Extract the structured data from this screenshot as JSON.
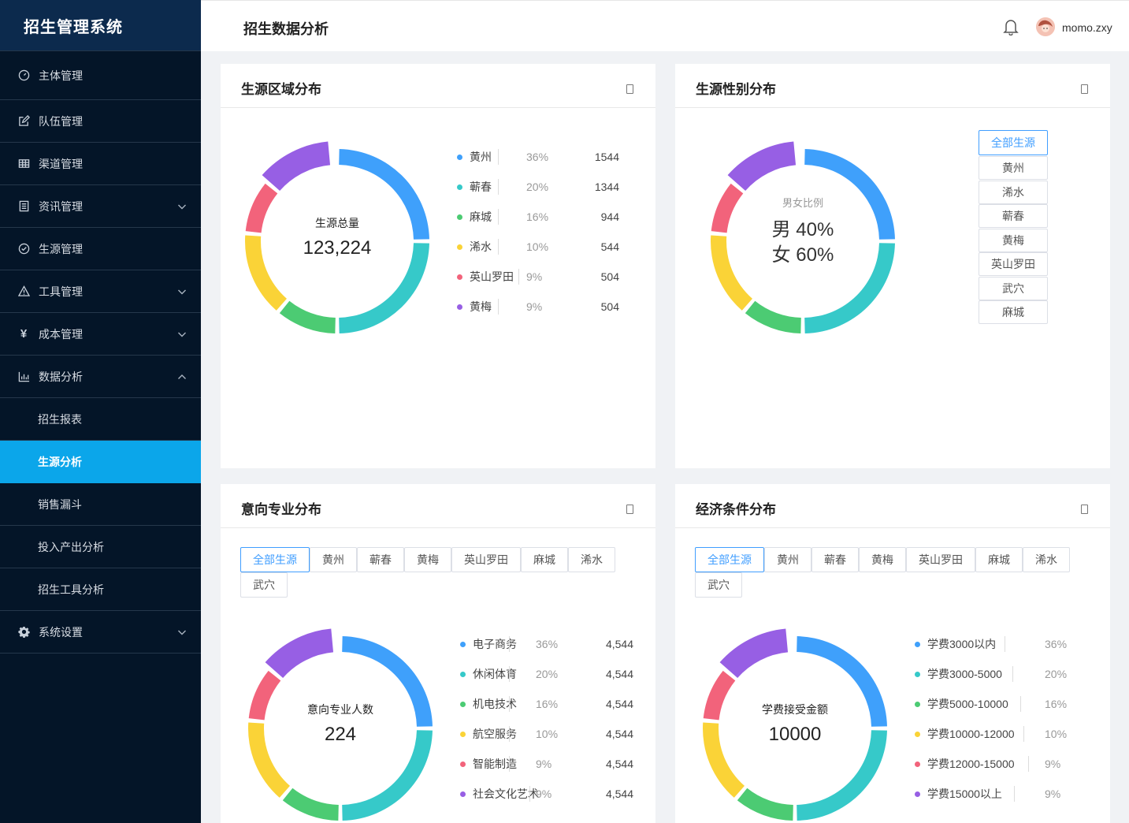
{
  "app": {
    "title": "招生管理系统"
  },
  "header": {
    "title": "招生数据分析",
    "username": "momo.zxy"
  },
  "sidebar": {
    "items": [
      {
        "label": "主体管理",
        "icon": "gauge-icon"
      },
      {
        "label": "队伍管理",
        "icon": "edit-icon"
      },
      {
        "label": "渠道管理",
        "icon": "table-icon"
      },
      {
        "label": "资讯管理",
        "icon": "document-icon"
      },
      {
        "label": "生源管理",
        "icon": "check-circle-icon"
      },
      {
        "label": "工具管理",
        "icon": "warning-icon"
      },
      {
        "label": "成本管理",
        "icon": "yen-icon"
      },
      {
        "label": "数据分析",
        "icon": "bar-chart-icon"
      },
      {
        "label": "系统设置",
        "icon": "gear-icon"
      }
    ],
    "sub_items": [
      {
        "label": "招生报表"
      },
      {
        "label": "生源分析"
      },
      {
        "label": "销售漏斗"
      },
      {
        "label": "投入产出分析"
      },
      {
        "label": "招生工具分析"
      }
    ]
  },
  "colors": {
    "blue": "#3fa0fb",
    "teal": "#36c9c9",
    "green": "#4ccb73",
    "yellow": "#fad337",
    "red": "#f2637b",
    "purple": "#975fe4"
  },
  "region": {
    "title": "生源区域分布",
    "center_label": "生源总量",
    "center_value": "123,224",
    "legend": [
      {
        "name": "黄州",
        "pct": "36%",
        "value": "1544",
        "color": "#3fa0fb"
      },
      {
        "name": "蕲春",
        "pct": "20%",
        "value": "1344",
        "color": "#36c9c9"
      },
      {
        "name": "麻城",
        "pct": "16%",
        "value": "944",
        "color": "#4ccb73"
      },
      {
        "name": "浠水",
        "pct": "10%",
        "value": "544",
        "color": "#fad337"
      },
      {
        "name": "英山罗田",
        "pct": "9%",
        "value": "504",
        "color": "#f2637b"
      },
      {
        "name": "黄梅",
        "pct": "9%",
        "value": "504",
        "color": "#975fe4"
      }
    ]
  },
  "gender": {
    "title": "生源性别分布",
    "label": "男女比例",
    "male": "男 40%",
    "female": "女 60%",
    "filters": [
      "全部生源",
      "黄州",
      "浠水",
      "蕲春",
      "黄梅",
      "英山罗田",
      "武穴",
      "麻城"
    ]
  },
  "major": {
    "title": "意向专业分布",
    "center_label": "意向专业人数",
    "center_value": "224",
    "filters": [
      "全部生源",
      "黄州",
      "蕲春",
      "黄梅",
      "英山罗田",
      "麻城",
      "浠水",
      "武穴"
    ],
    "legend": [
      {
        "name": "电子商务",
        "pct": "36%",
        "value": "4,544",
        "color": "#3fa0fb"
      },
      {
        "name": "休闲体育",
        "pct": "20%",
        "value": "4,544",
        "color": "#36c9c9"
      },
      {
        "name": "机电技术",
        "pct": "16%",
        "value": "4,544",
        "color": "#4ccb73"
      },
      {
        "name": "航空服务",
        "pct": "10%",
        "value": "4,544",
        "color": "#fad337"
      },
      {
        "name": "智能制造",
        "pct": "9%",
        "value": "4,544",
        "color": "#f2637b"
      },
      {
        "name": "社会文化艺术",
        "pct": "9%",
        "value": "4,544",
        "color": "#975fe4"
      }
    ]
  },
  "economy": {
    "title": "经济条件分布",
    "center_label": "学费接受金额",
    "center_value": "10000",
    "filters": [
      "全部生源",
      "黄州",
      "蕲春",
      "黄梅",
      "英山罗田",
      "麻城",
      "浠水",
      "武穴"
    ],
    "legend": [
      {
        "name": "学费3000以内",
        "pct": "36%",
        "color": "#3fa0fb"
      },
      {
        "name": "学费3000-5000",
        "pct": "20%",
        "color": "#36c9c9"
      },
      {
        "name": "学费5000-10000",
        "pct": "16%",
        "color": "#4ccb73"
      },
      {
        "name": "学费10000-12000",
        "pct": "10%",
        "color": "#fad337"
      },
      {
        "name": "学费12000-15000",
        "pct": "9%",
        "color": "#f2637b"
      },
      {
        "name": "学费15000以上",
        "pct": "9%",
        "color": "#975fe4"
      }
    ]
  }
}
